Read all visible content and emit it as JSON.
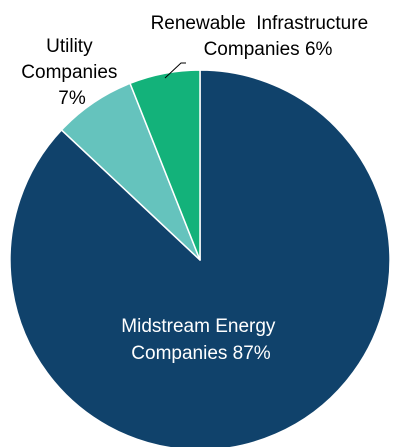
{
  "chart_data": {
    "type": "pie",
    "slices": [
      {
        "label_lines": [
          "Midstream Energy",
          "Companies 87%"
        ],
        "value": 87,
        "color": "#10426b"
      },
      {
        "label_lines": [
          "Utility",
          "Companies",
          "7%"
        ],
        "value": 7,
        "color": "#65c3bd"
      },
      {
        "label_lines": [
          "Renewable  Infrastructure",
          "Companies 6%"
        ],
        "value": 6,
        "color": "#13b27a"
      }
    ],
    "start_angle_deg": 0,
    "direction": "clockwise",
    "legend": "none",
    "labels": "on slices and outside with leader line"
  }
}
